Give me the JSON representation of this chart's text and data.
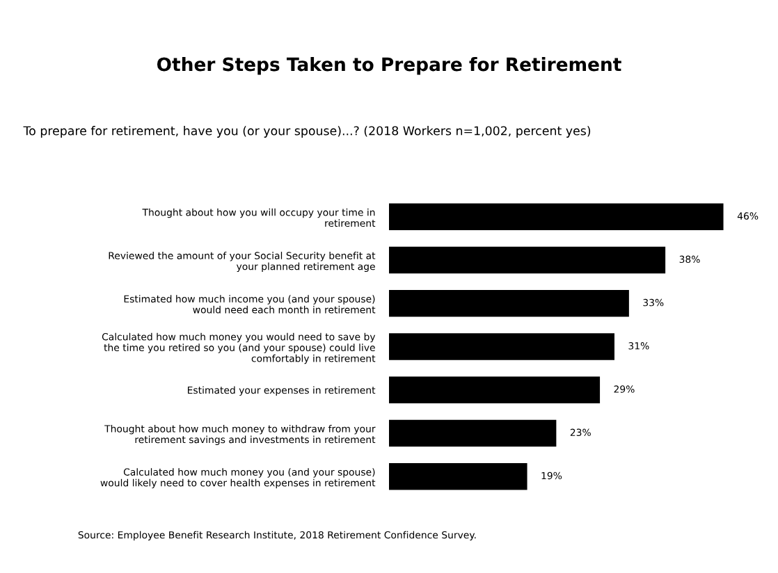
{
  "chart_data": {
    "type": "bar",
    "orientation": "horizontal",
    "title": "Other Steps Taken to Prepare for Retirement",
    "subtitle": "To prepare for retirement, have you (or your spouse)...? (2018 Workers n=1,002, percent yes)",
    "categories": [
      "Thought about how you will occupy your time in\nretirement",
      "Reviewed the amount of your Social Security benefit at\nyour planned retirement age",
      "Estimated how much income you (and your spouse)\nwould need each month in retirement",
      "Calculated how much money you would need to save by\nthe time you retired so you (and your spouse) could live\ncomfortably in retirement",
      "Estimated your expenses in retirement",
      "Thought about how much money to withdraw from your\nretirement savings and investments in retirement",
      "Calculated how much money you (and your spouse)\nwould likely need to cover health expenses in retirement"
    ],
    "values": [
      46,
      38,
      33,
      31,
      29,
      23,
      19
    ],
    "value_labels": [
      "46%",
      "38%",
      "33%",
      "31%",
      "29%",
      "23%",
      "19%"
    ],
    "color": "#000000",
    "tick_labels": "y",
    "annotations": [
      "Source: Employee Benefit Research Institute, 2018 Retirement Confidence Survey."
    ]
  }
}
